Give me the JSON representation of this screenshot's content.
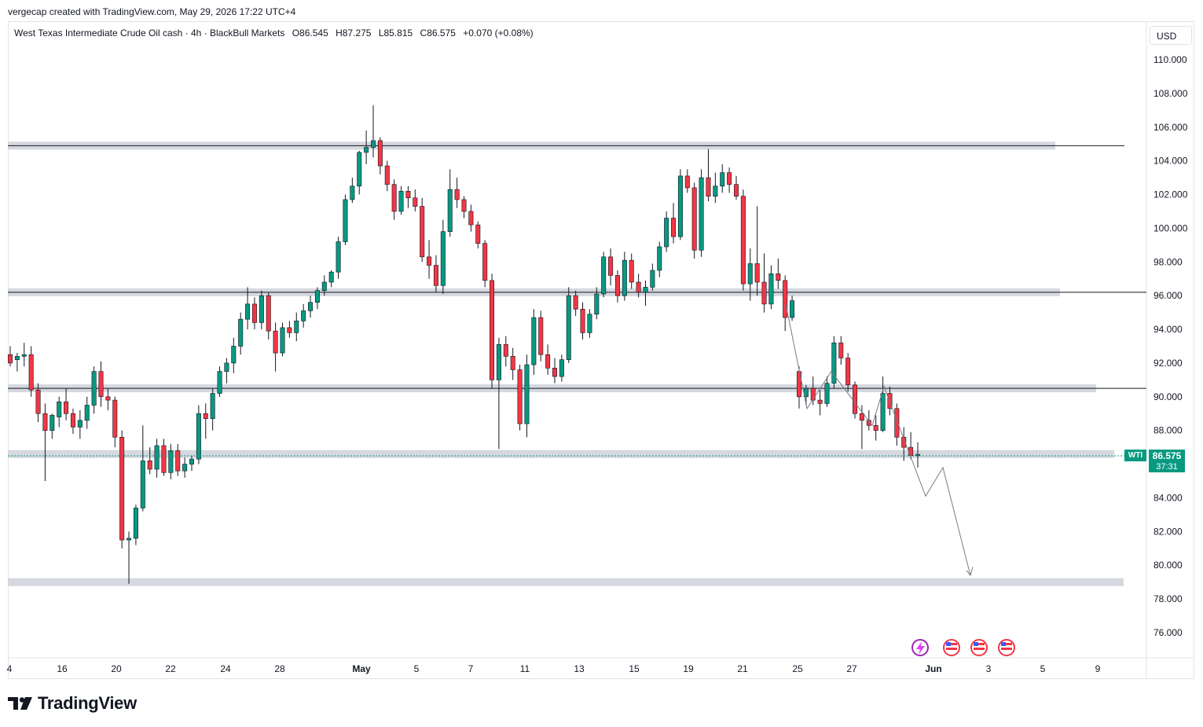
{
  "header": {
    "attribution": "vergecap created with TradingView.com, May 29, 2026 17:22 UTC+4"
  },
  "legend": {
    "symbol": "West Texas Intermediate Crude Oil cash · 4h · BlackBull Markets",
    "open": "O86.545",
    "high": "H87.275",
    "low": "L85.815",
    "close": "C86.575",
    "change": "+0.070 (+0.08%)"
  },
  "currency": "USD",
  "last_price": {
    "symbol": "WTI",
    "value": "86.575",
    "countdown": "37:31"
  },
  "footer": {
    "brand": "TradingView"
  },
  "colors": {
    "up": "#089981",
    "down": "#f23645",
    "zone": "#d1d4dc",
    "line": "#131722"
  },
  "chart_data": {
    "type": "candlestick",
    "y_axis": {
      "min": 74,
      "max": 111,
      "ticks": [
        "110.000",
        "108.000",
        "106.000",
        "104.000",
        "102.000",
        "100.000",
        "98.000",
        "96.000",
        "94.000",
        "92.000",
        "90.000",
        "88.000",
        "86.000",
        "84.000",
        "82.000",
        "80.000",
        "78.000",
        "76.000"
      ]
    },
    "x_axis": {
      "tick_labels": [
        "4",
        "16",
        "20",
        "22",
        "24",
        "28",
        "May",
        "5",
        "7",
        "11",
        "13",
        "15",
        "19",
        "21",
        "25",
        "27",
        "Jun",
        "3",
        "5",
        "9"
      ]
    },
    "grid": false,
    "zones": [
      {
        "level": 104.9
      },
      {
        "level": 96.2
      },
      {
        "level": 90.5
      },
      {
        "level": 86.6
      },
      {
        "level": 79.0
      }
    ],
    "projection": [
      [
        85.5,
        90.6
      ],
      [
        84.1,
        85.8
      ],
      [
        79.4,
        85.8
      ]
    ],
    "series": [
      {
        "ohlc": [
          [
            92.5,
            93.0,
            91.8,
            92.0
          ],
          [
            92.2,
            92.6,
            91.5,
            92.4
          ],
          [
            92.4,
            93.2,
            91.8,
            92.5
          ],
          [
            92.5,
            93.0,
            90.0,
            90.4
          ],
          [
            90.4,
            90.8,
            88.5,
            89.0
          ],
          [
            89.0,
            89.6,
            85.0,
            88.0
          ],
          [
            88.0,
            89.0,
            87.5,
            88.9
          ],
          [
            88.8,
            90.0,
            88.2,
            89.7
          ],
          [
            89.7,
            90.5,
            88.6,
            89.0
          ],
          [
            89.0,
            89.3,
            87.8,
            88.2
          ],
          [
            88.2,
            89.2,
            87.5,
            88.6
          ],
          [
            88.6,
            90.0,
            88.1,
            89.5
          ],
          [
            89.5,
            91.8,
            89.0,
            91.5
          ],
          [
            91.5,
            92.1,
            89.4,
            90.0
          ],
          [
            90.0,
            90.5,
            89.2,
            89.8
          ],
          [
            89.8,
            90.0,
            87.0,
            87.6
          ],
          [
            87.6,
            88.0,
            81.0,
            81.5
          ],
          [
            81.5,
            82.0,
            78.9,
            81.6
          ],
          [
            81.6,
            83.6,
            81.2,
            83.4
          ],
          [
            83.4,
            88.3,
            83.2,
            86.2
          ],
          [
            86.2,
            87.0,
            85.4,
            85.7
          ],
          [
            85.7,
            87.5,
            85.2,
            87.1
          ],
          [
            87.1,
            87.5,
            85.3,
            85.5
          ],
          [
            85.5,
            87.2,
            85.1,
            86.8
          ],
          [
            86.8,
            87.2,
            85.3,
            85.6
          ],
          [
            85.6,
            86.4,
            85.2,
            86.0
          ],
          [
            86.0,
            86.5,
            85.6,
            86.3
          ],
          [
            86.3,
            89.5,
            86.0,
            89.0
          ],
          [
            89.0,
            89.6,
            87.5,
            88.7
          ],
          [
            88.7,
            90.5,
            88.0,
            90.2
          ],
          [
            90.2,
            91.8,
            90.0,
            91.5
          ],
          [
            91.5,
            92.3,
            90.8,
            92.0
          ],
          [
            92.0,
            93.5,
            91.4,
            93.0
          ],
          [
            93.0,
            95.0,
            92.5,
            94.6
          ],
          [
            94.6,
            96.5,
            94.0,
            95.5
          ],
          [
            95.5,
            95.9,
            94.0,
            94.4
          ],
          [
            94.4,
            96.3,
            94.0,
            96.0
          ],
          [
            96.0,
            96.2,
            93.4,
            93.9
          ],
          [
            93.9,
            94.4,
            91.5,
            92.6
          ],
          [
            92.6,
            94.4,
            92.4,
            94.1
          ],
          [
            94.1,
            94.5,
            93.5,
            93.8
          ],
          [
            93.8,
            95.0,
            93.3,
            94.5
          ],
          [
            94.5,
            95.5,
            94.1,
            95.1
          ],
          [
            95.1,
            96.0,
            94.7,
            95.6
          ],
          [
            95.6,
            96.5,
            95.2,
            96.3
          ],
          [
            96.3,
            97.2,
            96.0,
            96.8
          ],
          [
            96.8,
            97.5,
            96.5,
            97.4
          ],
          [
            97.4,
            99.5,
            97.0,
            99.2
          ],
          [
            99.2,
            102.0,
            99.0,
            101.7
          ],
          [
            101.7,
            103.0,
            101.5,
            102.5
          ],
          [
            102.5,
            104.6,
            102.0,
            104.5
          ],
          [
            104.5,
            105.8,
            103.8,
            104.8
          ],
          [
            104.8,
            107.3,
            104.2,
            105.2
          ],
          [
            105.2,
            105.4,
            103.2,
            103.7
          ],
          [
            103.7,
            104.0,
            102.2,
            102.6
          ],
          [
            102.6,
            102.9,
            100.5,
            101.0
          ],
          [
            101.0,
            102.5,
            100.8,
            102.2
          ],
          [
            102.2,
            102.5,
            101.2,
            101.8
          ],
          [
            101.8,
            102.3,
            101.0,
            101.3
          ],
          [
            101.3,
            101.8,
            98.0,
            98.3
          ],
          [
            98.3,
            99.3,
            97.0,
            97.8
          ],
          [
            97.8,
            98.4,
            96.2,
            96.6
          ],
          [
            96.6,
            100.5,
            96.1,
            99.8
          ],
          [
            99.8,
            103.5,
            99.5,
            102.3
          ],
          [
            102.3,
            103.0,
            101.2,
            101.7
          ],
          [
            101.7,
            101.9,
            100.6,
            101.0
          ],
          [
            101.0,
            101.4,
            99.8,
            100.2
          ],
          [
            100.2,
            100.4,
            98.8,
            99.1
          ],
          [
            99.1,
            99.3,
            96.5,
            96.9
          ],
          [
            96.9,
            97.3,
            90.5,
            91.0
          ],
          [
            91.0,
            93.5,
            86.9,
            93.1
          ],
          [
            93.1,
            93.6,
            91.8,
            92.4
          ],
          [
            92.4,
            92.9,
            91.0,
            91.6
          ],
          [
            91.6,
            91.9,
            88.0,
            88.4
          ],
          [
            88.4,
            92.5,
            87.6,
            91.9
          ],
          [
            91.9,
            95.2,
            91.3,
            94.7
          ],
          [
            94.7,
            95.1,
            92.1,
            92.5
          ],
          [
            92.5,
            93.1,
            91.3,
            91.7
          ],
          [
            91.7,
            92.3,
            90.8,
            91.2
          ],
          [
            91.2,
            92.5,
            90.9,
            92.2
          ],
          [
            92.2,
            96.5,
            92.0,
            96.0
          ],
          [
            96.0,
            96.3,
            94.8,
            95.2
          ],
          [
            95.2,
            95.6,
            93.4,
            93.8
          ],
          [
            93.8,
            95.2,
            93.5,
            94.9
          ],
          [
            94.9,
            96.5,
            94.6,
            96.1
          ],
          [
            96.1,
            98.6,
            95.9,
            98.3
          ],
          [
            98.3,
            98.8,
            96.6,
            97.2
          ],
          [
            97.2,
            97.5,
            95.6,
            96.0
          ],
          [
            96.0,
            98.6,
            95.7,
            98.1
          ],
          [
            98.1,
            98.5,
            96.4,
            96.8
          ],
          [
            96.8,
            97.3,
            95.9,
            96.2
          ],
          [
            96.2,
            96.9,
            95.4,
            96.5
          ],
          [
            96.5,
            97.9,
            96.3,
            97.5
          ],
          [
            97.5,
            99.2,
            97.1,
            98.9
          ],
          [
            98.9,
            101.0,
            98.6,
            100.6
          ],
          [
            100.6,
            101.5,
            99.1,
            99.5
          ],
          [
            99.5,
            103.5,
            99.3,
            103.1
          ],
          [
            103.1,
            103.5,
            102.1,
            102.4
          ],
          [
            102.4,
            102.7,
            98.2,
            98.7
          ],
          [
            98.7,
            103.5,
            98.3,
            103.0
          ],
          [
            103.0,
            104.7,
            101.6,
            101.9
          ],
          [
            101.9,
            103.3,
            101.5,
            102.5
          ],
          [
            102.5,
            103.8,
            102.1,
            103.3
          ],
          [
            103.3,
            103.6,
            102.1,
            102.6
          ],
          [
            102.6,
            103.1,
            101.7,
            101.9
          ],
          [
            101.9,
            102.3,
            96.3,
            96.7
          ],
          [
            96.7,
            98.8,
            95.7,
            97.9
          ],
          [
            97.9,
            101.3,
            96.0,
            96.8
          ],
          [
            96.8,
            98.5,
            95.0,
            95.5
          ],
          [
            95.5,
            97.8,
            95.2,
            97.3
          ],
          [
            97.3,
            98.2,
            96.4,
            96.9
          ],
          [
            96.9,
            97.2,
            93.9,
            94.7
          ],
          [
            94.7,
            96.0,
            94.5,
            95.7
          ],
          [
            91.5,
            91.8,
            89.3,
            90.0
          ],
          [
            90.0,
            90.7,
            89.5,
            90.5
          ],
          [
            90.5,
            91.2,
            89.5,
            89.8
          ],
          [
            89.8,
            90.4,
            88.9,
            89.6
          ],
          [
            89.6,
            91.2,
            89.4,
            90.8
          ],
          [
            90.8,
            93.6,
            90.5,
            93.2
          ],
          [
            93.2,
            93.6,
            91.9,
            92.3
          ],
          [
            92.3,
            92.6,
            90.3,
            90.7
          ],
          [
            90.7,
            90.9,
            88.7,
            89.0
          ],
          [
            89.0,
            89.5,
            86.9,
            88.6
          ],
          [
            88.6,
            89.2,
            88.0,
            88.3
          ],
          [
            88.3,
            88.9,
            87.4,
            88.0
          ],
          [
            88.0,
            91.2,
            87.9,
            90.2
          ],
          [
            90.2,
            90.6,
            88.9,
            89.3
          ],
          [
            89.3,
            89.6,
            87.1,
            87.6
          ],
          [
            87.6,
            88.2,
            86.2,
            87.0
          ],
          [
            87.0,
            87.9,
            86.3,
            86.5
          ],
          [
            86.5,
            87.3,
            85.8,
            86.58
          ]
        ]
      }
    ]
  }
}
